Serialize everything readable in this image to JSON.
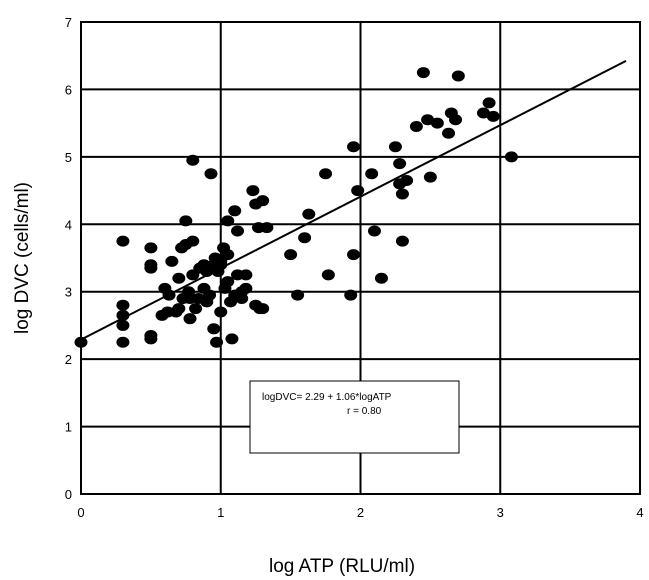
{
  "chart_data": {
    "type": "scatter",
    "title": "",
    "xlabel": "log ATP (RLU/ml)",
    "ylabel": "log DVC (cells/ml)",
    "xlim": [
      0,
      4
    ],
    "ylim": [
      0,
      7
    ],
    "xticks": [
      "0",
      "1",
      "2",
      "3",
      "4"
    ],
    "yticks": [
      "0",
      "1",
      "2",
      "3",
      "4",
      "5",
      "6",
      "7"
    ],
    "grid": true,
    "points": [
      [
        0.0,
        2.25
      ],
      [
        0.3,
        2.25
      ],
      [
        0.3,
        2.5
      ],
      [
        0.3,
        2.65
      ],
      [
        0.3,
        2.8
      ],
      [
        0.3,
        3.75
      ],
      [
        0.5,
        2.3
      ],
      [
        0.5,
        2.35
      ],
      [
        0.5,
        3.35
      ],
      [
        0.5,
        3.4
      ],
      [
        0.5,
        3.65
      ],
      [
        0.58,
        2.65
      ],
      [
        0.6,
        3.05
      ],
      [
        0.62,
        2.7
      ],
      [
        0.63,
        2.95
      ],
      [
        0.65,
        3.45
      ],
      [
        0.68,
        2.7
      ],
      [
        0.7,
        2.75
      ],
      [
        0.7,
        3.2
      ],
      [
        0.72,
        3.65
      ],
      [
        0.73,
        2.9
      ],
      [
        0.75,
        3.7
      ],
      [
        0.75,
        4.05
      ],
      [
        0.77,
        3.0
      ],
      [
        0.78,
        2.6
      ],
      [
        0.78,
        2.9
      ],
      [
        0.8,
        3.25
      ],
      [
        0.8,
        3.75
      ],
      [
        0.8,
        4.95
      ],
      [
        0.82,
        2.75
      ],
      [
        0.84,
        2.9
      ],
      [
        0.85,
        3.35
      ],
      [
        0.88,
        3.05
      ],
      [
        0.88,
        3.4
      ],
      [
        0.9,
        2.85
      ],
      [
        0.9,
        3.3
      ],
      [
        0.92,
        2.95
      ],
      [
        0.93,
        4.75
      ],
      [
        0.95,
        2.45
      ],
      [
        0.95,
        3.4
      ],
      [
        0.96,
        3.5
      ],
      [
        0.97,
        2.25
      ],
      [
        0.98,
        3.3
      ],
      [
        1.0,
        2.7
      ],
      [
        1.0,
        3.4
      ],
      [
        1.0,
        3.45
      ],
      [
        1.02,
        3.65
      ],
      [
        1.03,
        3.05
      ],
      [
        1.05,
        3.15
      ],
      [
        1.05,
        3.55
      ],
      [
        1.05,
        4.05
      ],
      [
        1.07,
        2.85
      ],
      [
        1.08,
        2.3
      ],
      [
        1.1,
        2.95
      ],
      [
        1.1,
        4.2
      ],
      [
        1.12,
        3.25
      ],
      [
        1.12,
        3.9
      ],
      [
        1.15,
        2.9
      ],
      [
        1.15,
        3.0
      ],
      [
        1.18,
        3.05
      ],
      [
        1.18,
        3.25
      ],
      [
        1.23,
        4.5
      ],
      [
        1.25,
        2.8
      ],
      [
        1.25,
        4.3
      ],
      [
        1.27,
        3.95
      ],
      [
        1.28,
        2.75
      ],
      [
        1.3,
        2.75
      ],
      [
        1.3,
        4.35
      ],
      [
        1.33,
        3.95
      ],
      [
        1.5,
        3.55
      ],
      [
        1.55,
        2.95
      ],
      [
        1.6,
        3.8
      ],
      [
        1.63,
        4.15
      ],
      [
        1.75,
        4.75
      ],
      [
        1.77,
        3.25
      ],
      [
        1.93,
        2.95
      ],
      [
        1.95,
        3.55
      ],
      [
        1.95,
        5.15
      ],
      [
        1.98,
        4.5
      ],
      [
        2.08,
        4.75
      ],
      [
        2.1,
        3.9
      ],
      [
        2.15,
        3.2
      ],
      [
        2.25,
        5.15
      ],
      [
        2.28,
        4.9
      ],
      [
        2.28,
        4.6
      ],
      [
        2.3,
        3.75
      ],
      [
        2.3,
        4.45
      ],
      [
        2.33,
        4.65
      ],
      [
        2.4,
        5.45
      ],
      [
        2.45,
        6.25
      ],
      [
        2.48,
        5.55
      ],
      [
        2.5,
        4.7
      ],
      [
        2.55,
        5.5
      ],
      [
        2.63,
        5.35
      ],
      [
        2.65,
        5.65
      ],
      [
        2.68,
        5.55
      ],
      [
        2.7,
        6.2
      ],
      [
        2.88,
        5.65
      ],
      [
        2.92,
        5.8
      ],
      [
        2.95,
        5.6
      ],
      [
        3.08,
        5.0
      ]
    ],
    "fit_line": {
      "intercept": 2.29,
      "slope": 1.06,
      "x_range": [
        0,
        3.9
      ]
    },
    "annotation_lines": [
      "logDVC= 2.29 + 1.06*logATP",
      "r = 0.80"
    ]
  }
}
